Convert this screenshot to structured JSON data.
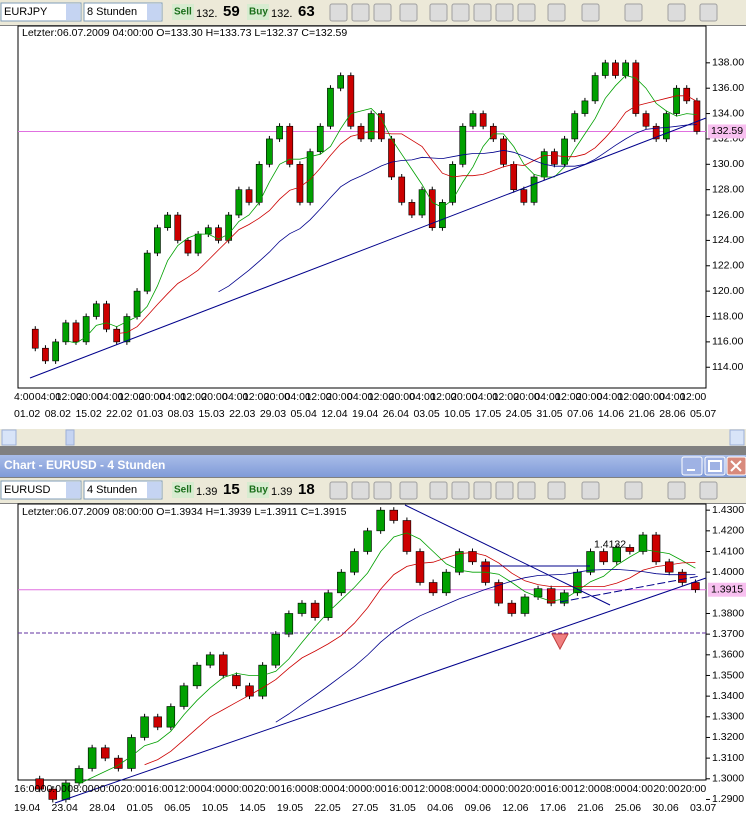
{
  "window_title": "Chart - EURUSD - 4 Stunden",
  "sell_label": "Sell",
  "buy_label": "Buy",
  "charts": [
    {
      "symbol": "EURJPY",
      "period": "8 Stunden",
      "sell": {
        "main": "132.",
        "pips": "59"
      },
      "buy": {
        "main": "132.",
        "pips": "63"
      },
      "info": "Letzter:06.07.2009 04:00:00 O=133.30 H=133.73 L=132.37 C=132.59",
      "ylim": [
        112.6,
        139.8
      ],
      "yticks": [
        {
          "value": 114,
          "label": "114.00"
        },
        {
          "value": 116,
          "label": "116.00"
        },
        {
          "value": 118,
          "label": "118.00"
        },
        {
          "value": 120,
          "label": "120.00"
        },
        {
          "value": 122,
          "label": "122.00"
        },
        {
          "value": 124,
          "label": "124.00"
        },
        {
          "value": 126,
          "label": "126.00"
        },
        {
          "value": 128,
          "label": "128.00"
        },
        {
          "value": 130,
          "label": "130.00"
        },
        {
          "value": 132,
          "label": "132.00"
        },
        {
          "value": 134,
          "label": "134.00"
        },
        {
          "value": 136,
          "label": "136.00"
        },
        {
          "value": 138,
          "label": "138.00"
        }
      ],
      "last": {
        "value": 132.59,
        "label": "132.59"
      },
      "x_times": [
        "4:00",
        "04:00",
        "12:00",
        "20:00",
        "04:00",
        "12:00",
        "20:00",
        "04:00",
        "12:00",
        "20:00",
        "04:00",
        "12:00",
        "20:00",
        "04:00",
        "12:00",
        "20:00",
        "04:00",
        "12:00",
        "20:00",
        "04:00",
        "12:00",
        "20:00",
        "04:00",
        "12:00",
        "20:00",
        "04:00",
        "12:00",
        "20:00",
        "04:00",
        "12:00",
        "20:00",
        "04:00",
        "12:00"
      ],
      "x_dates": [
        "01.02",
        "08.02",
        "15.02",
        "22.02",
        "01.03",
        "08.03",
        "15.03",
        "22.03",
        "29.03",
        "05.04",
        "12.04",
        "19.04",
        "26.04",
        "03.05",
        "10.05",
        "17.05",
        "24.05",
        "31.05",
        "07.06",
        "14.06",
        "21.06",
        "28.06",
        "05.07"
      ],
      "closes": [
        117,
        115.5,
        114.5,
        116,
        117.5,
        116,
        118,
        119,
        117,
        116,
        118,
        120,
        123,
        125,
        126,
        124,
        123,
        124.5,
        125,
        124,
        126,
        128,
        127,
        130,
        132,
        133,
        130,
        127,
        131,
        133,
        136,
        137,
        133,
        132,
        134,
        132,
        129,
        127,
        126,
        128,
        125,
        127,
        130,
        133,
        134,
        133,
        132,
        130,
        128,
        127,
        129,
        131,
        130,
        132,
        134,
        135,
        137,
        138,
        137,
        138,
        134,
        133,
        132,
        134,
        136,
        135,
        132.59
      ]
    },
    {
      "symbol": "EURUSD",
      "period": "4 Stunden",
      "sell": {
        "main": "1.39",
        "pips": "15"
      },
      "buy": {
        "main": "1.39",
        "pips": "18"
      },
      "info": "Letzter:06.07.2009 08:00:00 O=1.3934 H=1.3939 L=1.3911 C=1.3915",
      "ylim": [
        1.2878,
        1.4325
      ],
      "yticks": [
        {
          "value": 1.29,
          "label": "1.2900"
        },
        {
          "value": 1.3,
          "label": "1.3000"
        },
        {
          "value": 1.31,
          "label": "1.3100"
        },
        {
          "value": 1.32,
          "label": "1.3200"
        },
        {
          "value": 1.33,
          "label": "1.3300"
        },
        {
          "value": 1.34,
          "label": "1.3400"
        },
        {
          "value": 1.35,
          "label": "1.3500"
        },
        {
          "value": 1.36,
          "label": "1.3600"
        },
        {
          "value": 1.37,
          "label": "1.3700"
        },
        {
          "value": 1.38,
          "label": "1.3800"
        },
        {
          "value": 1.4,
          "label": "1.4000"
        },
        {
          "value": 1.41,
          "label": "1.4100"
        },
        {
          "value": 1.42,
          "label": "1.4200"
        },
        {
          "value": 1.43,
          "label": "1.4300"
        }
      ],
      "last": {
        "value": 1.3915,
        "label": "1.3915"
      },
      "annotation": {
        "value": 1.4132,
        "label": "1.4132"
      },
      "x_times": [
        "16:00",
        "00:00",
        "08:00",
        "00:00",
        "20:00",
        "16:00",
        "12:00",
        "04:00",
        "00:00",
        "20:00",
        "16:00",
        "08:00",
        "04:00",
        "00:00",
        "16:00",
        "12:00",
        "08:00",
        "04:00",
        "00:00",
        "20:00",
        "16:00",
        "12:00",
        "08:00",
        "04:00",
        "20:00",
        "20:00"
      ],
      "x_dates": [
        "19.04",
        "23.04",
        "28.04",
        "01.05",
        "06.05",
        "10.05",
        "14.05",
        "19.05",
        "22.05",
        "27.05",
        "31.05",
        "04.06",
        "09.06",
        "12.06",
        "17.06",
        "21.06",
        "25.06",
        "30.06",
        "03.07"
      ],
      "closes": [
        1.3,
        1.295,
        1.29,
        1.298,
        1.305,
        1.315,
        1.31,
        1.305,
        1.32,
        1.33,
        1.325,
        1.335,
        1.345,
        1.355,
        1.36,
        1.35,
        1.345,
        1.34,
        1.355,
        1.37,
        1.38,
        1.385,
        1.378,
        1.39,
        1.4,
        1.41,
        1.42,
        1.43,
        1.425,
        1.41,
        1.395,
        1.39,
        1.4,
        1.41,
        1.405,
        1.395,
        1.385,
        1.38,
        1.388,
        1.392,
        1.385,
        1.39,
        1.4,
        1.41,
        1.405,
        1.412,
        1.41,
        1.418,
        1.405,
        1.4,
        1.395,
        1.3915
      ]
    }
  ]
}
